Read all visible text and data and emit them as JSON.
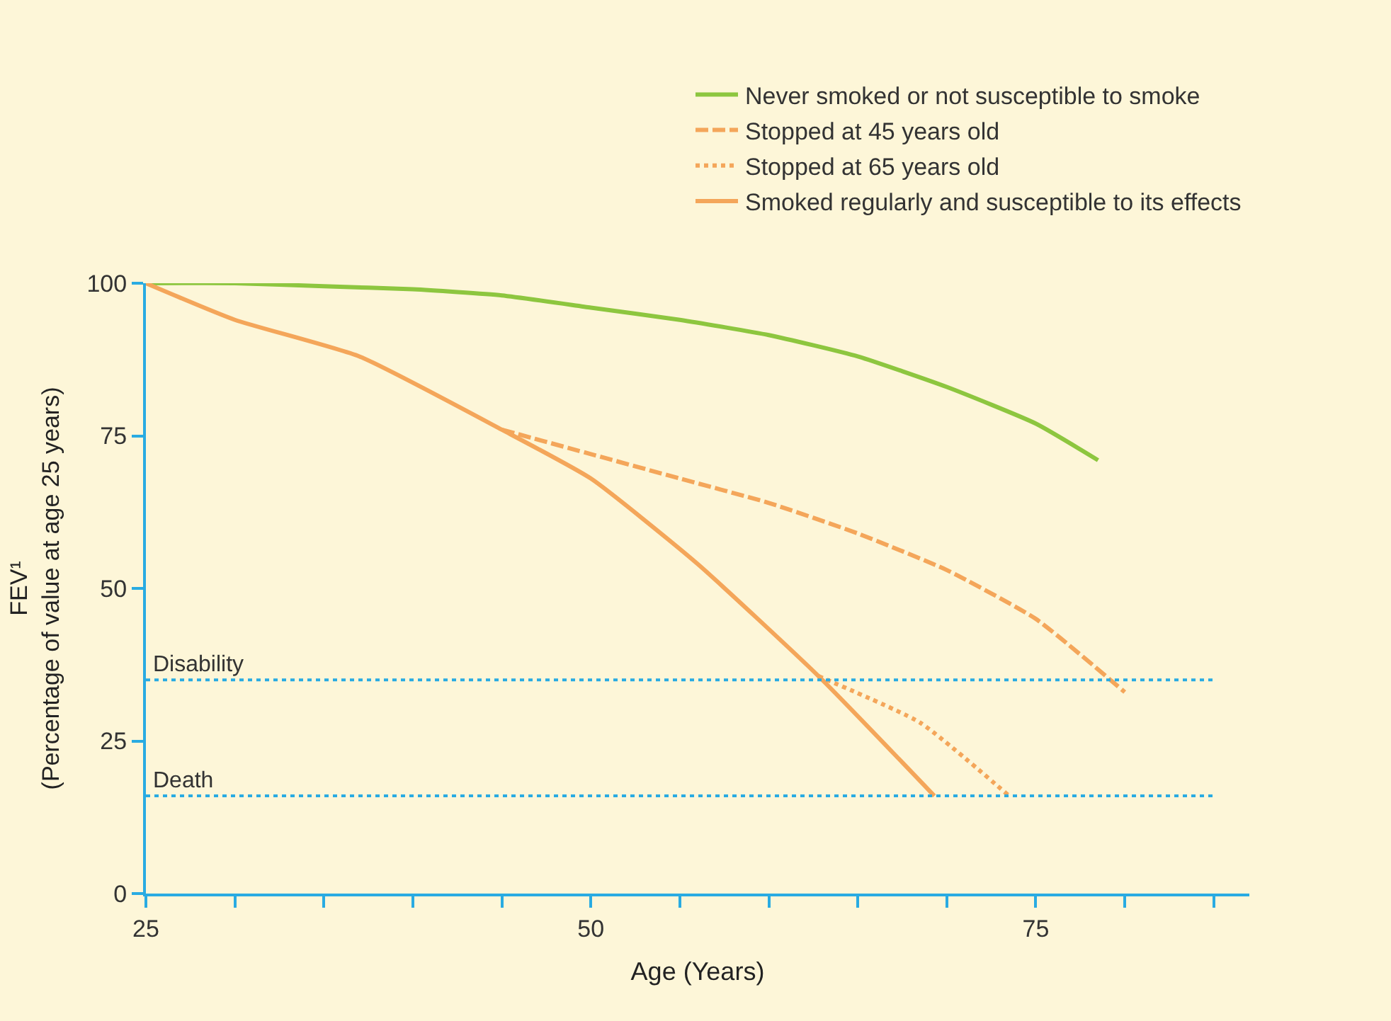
{
  "chart_data": {
    "type": "line",
    "xlabel": "Age (Years)",
    "ylabel": "FEV¹\n(Percentage of value at age 25 years)",
    "xlim": [
      25,
      87
    ],
    "ylim": [
      0,
      100
    ],
    "xticks": [
      25,
      {
        "value": 30,
        "label": null
      },
      {
        "value": 35,
        "label": null
      },
      {
        "value": 40,
        "label": null
      },
      {
        "value": 45,
        "label": null
      },
      50,
      {
        "value": 55,
        "label": null
      },
      {
        "value": 60,
        "label": null
      },
      {
        "value": 65,
        "label": null
      },
      {
        "value": 70,
        "label": null
      },
      75,
      {
        "value": 80,
        "label": null
      },
      {
        "value": 85,
        "label": null
      }
    ],
    "yticks": [
      0,
      25,
      50,
      75,
      100
    ],
    "grid": false,
    "legend": "top right",
    "marker": "none",
    "series": [
      {
        "name": "Never smoked or not susceptible to smoke",
        "color": "#8dc63f",
        "line_style": "solid",
        "x": [
          25,
          30,
          35,
          40,
          45,
          50,
          55,
          60,
          65,
          70,
          75,
          78.5
        ],
        "values": [
          100,
          100,
          99.5,
          99,
          98,
          96,
          94,
          91.5,
          88,
          83,
          77,
          71
        ]
      },
      {
        "name": "Stopped at 45 years old",
        "color": "#f4a65a",
        "line_style": "dashed",
        "x": [
          45,
          50,
          55,
          60,
          65,
          70,
          75,
          80
        ],
        "values": [
          76,
          72,
          68,
          64,
          59,
          53,
          45,
          33
        ]
      },
      {
        "name": "Stopped at 65 years old",
        "color": "#f4a65a",
        "line_style": "dotted",
        "x": [
          62.8,
          68.5,
          73.5
        ],
        "values": [
          35.6,
          28,
          16
        ]
      },
      {
        "name": "Smoked regularly and susceptible to its effects",
        "color": "#f4a65a",
        "line_style": "solid",
        "x": [
          25,
          30,
          37,
          45,
          50,
          56,
          62.8,
          69.3
        ],
        "values": [
          100,
          94,
          88,
          76,
          68,
          54,
          35.6,
          16
        ]
      }
    ],
    "ref_lines": [
      {
        "axis": "y",
        "value": 35,
        "label": "Disability",
        "color": "#29abe2",
        "line_style": "dotted"
      },
      {
        "axis": "y",
        "value": 16,
        "label": "Death",
        "color": "#29abe2",
        "line_style": "dotted"
      }
    ]
  }
}
